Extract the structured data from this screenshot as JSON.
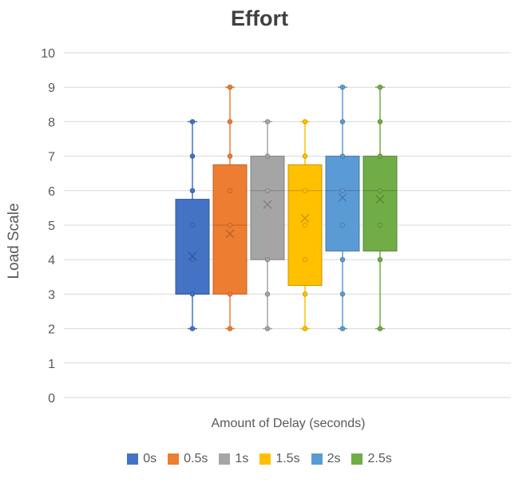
{
  "chart_data": {
    "type": "boxplot",
    "title": "Effort",
    "xlabel": "Amount of Delay (seconds)",
    "ylabel": "Load Scale",
    "ylim": [
      0,
      10
    ],
    "yticks": [
      0,
      1,
      2,
      3,
      4,
      5,
      6,
      7,
      8,
      9,
      10
    ],
    "grid": true,
    "legend_position": "bottom",
    "series": [
      {
        "name": "0s",
        "color": "#4472C4",
        "min": 2,
        "q1": 3,
        "median": 3,
        "q3": 5.75,
        "max": 8,
        "mean": 4.1,
        "points": [
          2,
          3,
          4,
          5,
          6,
          7,
          8
        ]
      },
      {
        "name": "0.5s",
        "color": "#ED7D31",
        "min": 2,
        "q1": 3,
        "median": 5,
        "q3": 6.75,
        "max": 9,
        "mean": 4.75,
        "points": [
          2,
          3,
          5,
          6,
          7,
          8,
          9
        ]
      },
      {
        "name": "1s",
        "color": "#A5A5A5",
        "min": 2,
        "q1": 4,
        "median": 6,
        "q3": 7,
        "max": 8,
        "mean": 5.6,
        "points": [
          2,
          3,
          4,
          6,
          7,
          8
        ]
      },
      {
        "name": "1.5s",
        "color": "#FFC000",
        "min": 2,
        "q1": 3.25,
        "median": 6,
        "q3": 6.75,
        "max": 8,
        "mean": 5.2,
        "points": [
          2,
          3,
          4,
          5,
          6,
          7,
          8
        ]
      },
      {
        "name": "2s",
        "color": "#5B9BD5",
        "min": 2,
        "q1": 4.25,
        "median": 6,
        "q3": 7,
        "max": 9,
        "mean": 5.8,
        "points": [
          2,
          3,
          4,
          5,
          6,
          7,
          8,
          9
        ]
      },
      {
        "name": "2.5s",
        "color": "#70AD47",
        "min": 2,
        "q1": 4.25,
        "median": 6,
        "q3": 7,
        "max": 9,
        "mean": 5.75,
        "points": [
          2,
          4,
          5,
          6,
          7,
          8,
          9
        ]
      }
    ]
  }
}
